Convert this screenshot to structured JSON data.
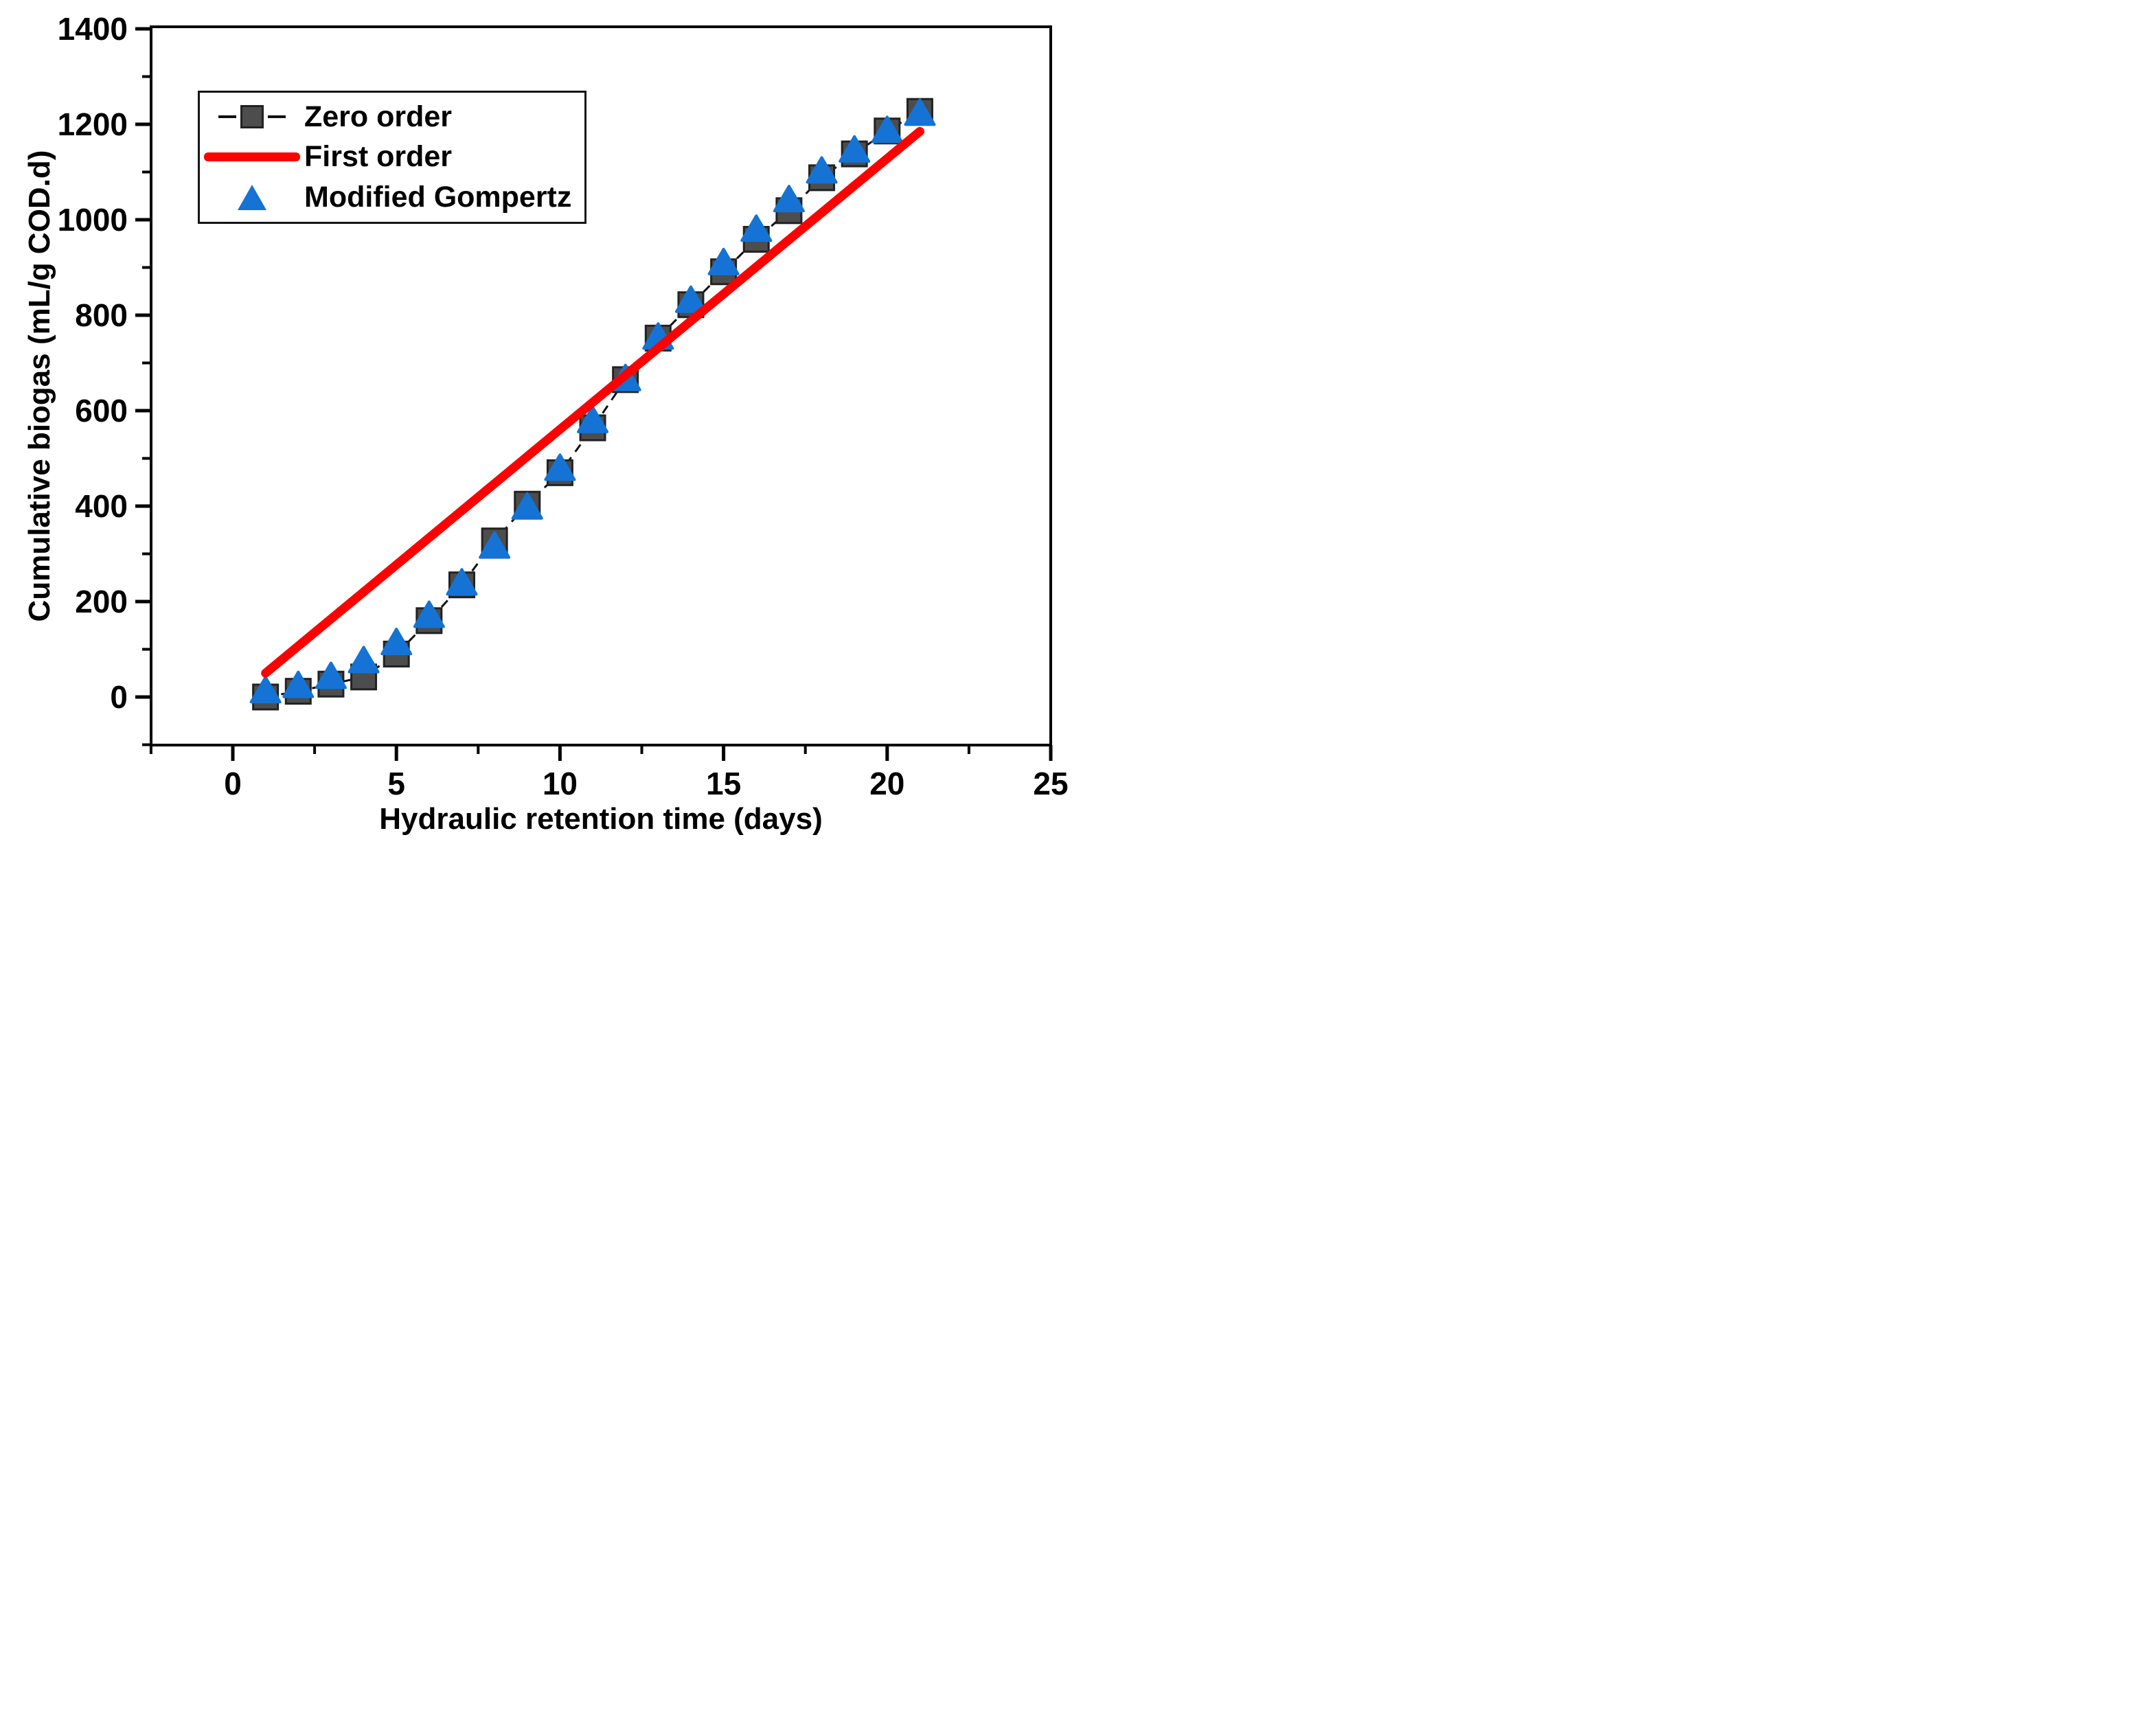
{
  "chart_data": {
    "type": "scatter",
    "title": "",
    "xlabel": "Hydraulic retention time (days)",
    "ylabel": "Cumulative biogas (mL/g COD.d)",
    "xlim": [
      -2.5,
      25
    ],
    "ylim": [
      -100,
      1400
    ],
    "x_major_ticks": [
      0,
      5,
      10,
      15,
      20,
      25
    ],
    "x_minor_ticks": [
      -2.5,
      2.5,
      7.5,
      12.5,
      17.5,
      22.5
    ],
    "y_major_ticks": [
      0,
      200,
      400,
      600,
      800,
      1000,
      1200,
      1400
    ],
    "y_minor_ticks": [
      -100,
      100,
      300,
      500,
      700,
      900,
      1100,
      1300
    ],
    "grid": false,
    "legend_position": "top-left",
    "days": [
      1,
      2,
      3,
      4,
      5,
      6,
      7,
      8,
      9,
      10,
      11,
      12,
      13,
      14,
      15,
      16,
      17,
      18,
      19,
      20,
      21
    ],
    "series": [
      {
        "name": "Zero order",
        "type": "scatter-with-line",
        "marker": "square",
        "marker_color": "#4d4d4d",
        "marker_edge_color": "#222222",
        "line_style": "dashed",
        "line_color": "#111111",
        "values": [
          0,
          12,
          27,
          42,
          90,
          160,
          235,
          327,
          404,
          470,
          564,
          665,
          752,
          822,
          891,
          959,
          1019,
          1088,
          1138,
          1186,
          1227
        ]
      },
      {
        "name": "First order",
        "type": "line",
        "line_style": "solid",
        "line_color": "#ff0000",
        "points": [
          [
            1,
            50
          ],
          [
            21,
            1185
          ]
        ]
      },
      {
        "name": "Modified Gompertz",
        "type": "scatter",
        "marker": "triangle-up",
        "marker_color": "#1473d4",
        "values": [
          14,
          25,
          44,
          77,
          115,
          172,
          240,
          317,
          399,
          480,
          580,
          668,
          755,
          832,
          911,
          981,
          1043,
          1103,
          1147,
          1188,
          1224
        ]
      }
    ],
    "frame_color": "#000000",
    "tick_label_color": "#000000"
  }
}
